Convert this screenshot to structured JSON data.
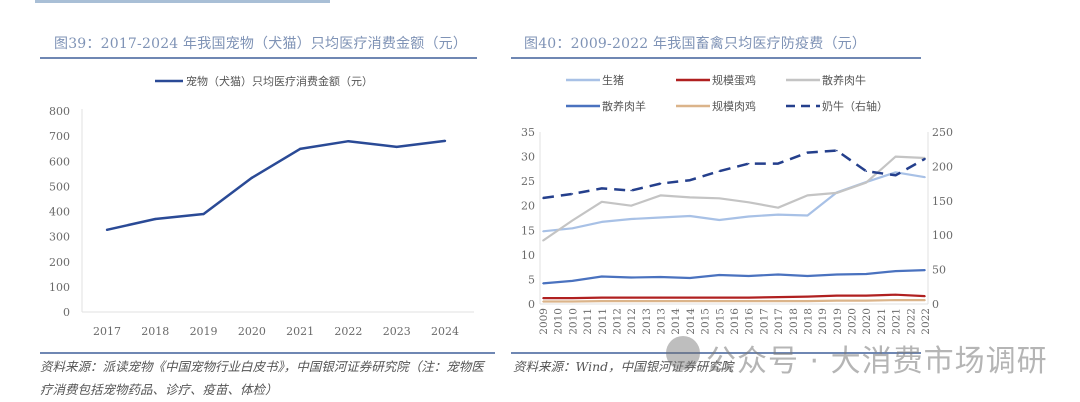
{
  "figure39": {
    "title": "图39：2017-2024 年我国宠物（犬猫）只均医疗消费金额（元）",
    "source": "资料来源：派读宠物《中国宠物行业白皮书》，中国银河证券研究院（注：宠物医疗消费包括宠物药品、诊疗、疫苗、体检）"
  },
  "figure40": {
    "title": "图40：2009-2022 年我国畜禽只均医疗防疫费（元）",
    "source": "资料来源：Wind，中国银河证券研究院"
  },
  "watermark": {
    "text": "公众号 · 大消费市场调研",
    "icon": "wechat-icon"
  },
  "chart_data": [
    {
      "type": "line",
      "title": "图39：2017-2024 年我国宠物（犬猫）只均医疗消费金额（元）",
      "xlabel": "",
      "ylabel": "",
      "categories": [
        "2017",
        "2018",
        "2019",
        "2020",
        "2021",
        "2022",
        "2023",
        "2024"
      ],
      "series": [
        {
          "name": "宠物（犬猫）只均医疗消费金额（元）",
          "color": "#2a4a96",
          "values": [
            327,
            370,
            390,
            534,
            649,
            680,
            657,
            681
          ]
        }
      ],
      "ylim": [
        0,
        800
      ],
      "yticks": [
        0,
        100,
        200,
        300,
        400,
        500,
        600,
        700,
        800
      ],
      "grid": false,
      "legend": "top-center"
    },
    {
      "type": "line",
      "title": "图40：2009-2022 年我国畜禽只均医疗防疫费（元）",
      "xlabel": "",
      "ylabel": "",
      "categories": [
        "2009",
        "2010",
        "2010",
        "2011",
        "2011",
        "2012",
        "2012",
        "2013",
        "2013",
        "2014",
        "2014",
        "2015",
        "2015",
        "2016",
        "2016",
        "2017",
        "2017",
        "2018",
        "2018",
        "2019",
        "2019",
        "2020",
        "2020",
        "2021",
        "2021",
        "2022",
        "2022"
      ],
      "years": [
        2009,
        2010,
        2011,
        2012,
        2013,
        2014,
        2015,
        2016,
        2017,
        2018,
        2019,
        2020,
        2021,
        2022
      ],
      "series": [
        {
          "name": "生猪",
          "axis": "left",
          "color": "#a8c1e6",
          "dash": false,
          "values": [
            14.8,
            15.4,
            16.7,
            17.3,
            17.6,
            17.9,
            17.1,
            17.8,
            18.2,
            18.0,
            22.7,
            24.8,
            26.8,
            25.8
          ]
        },
        {
          "name": "规模蛋鸡",
          "axis": "left",
          "color": "#b02020",
          "dash": false,
          "values": [
            1.2,
            1.2,
            1.3,
            1.3,
            1.3,
            1.3,
            1.3,
            1.3,
            1.4,
            1.5,
            1.7,
            1.7,
            1.9,
            1.6
          ]
        },
        {
          "name": "散养肉牛",
          "axis": "left",
          "color": "#c4c4c4",
          "dash": false,
          "values": [
            12.9,
            17.0,
            20.8,
            20.0,
            22.1,
            21.7,
            21.5,
            20.7,
            19.6,
            22.1,
            22.6,
            24.7,
            30.0,
            29.7
          ]
        },
        {
          "name": "散养肉羊",
          "axis": "left",
          "color": "#4a72bf",
          "dash": false,
          "values": [
            4.2,
            4.7,
            5.6,
            5.4,
            5.5,
            5.3,
            5.9,
            5.7,
            6.0,
            5.7,
            6.0,
            6.1,
            6.7,
            6.9
          ]
        },
        {
          "name": "规模肉鸡",
          "axis": "left",
          "color": "#dbb48a",
          "dash": false,
          "values": [
            0.5,
            0.5,
            0.6,
            0.6,
            0.6,
            0.6,
            0.6,
            0.6,
            0.6,
            0.6,
            0.7,
            0.7,
            0.8,
            0.8
          ]
        },
        {
          "name": "奶牛（右轴）",
          "axis": "right",
          "color": "#243f8c",
          "dash": true,
          "values": [
            154,
            160,
            168,
            165,
            175,
            180,
            193,
            204,
            204,
            220,
            223,
            193,
            187,
            211
          ]
        }
      ],
      "ylim_left": [
        0,
        35
      ],
      "yticks_left": [
        0,
        5,
        10,
        15,
        20,
        25,
        30,
        35
      ],
      "ylim_right": [
        0,
        250
      ],
      "yticks_right": [
        0,
        50,
        100,
        150,
        200,
        250
      ],
      "grid": false,
      "legend": "top (2 rows × 3 columns)"
    }
  ]
}
